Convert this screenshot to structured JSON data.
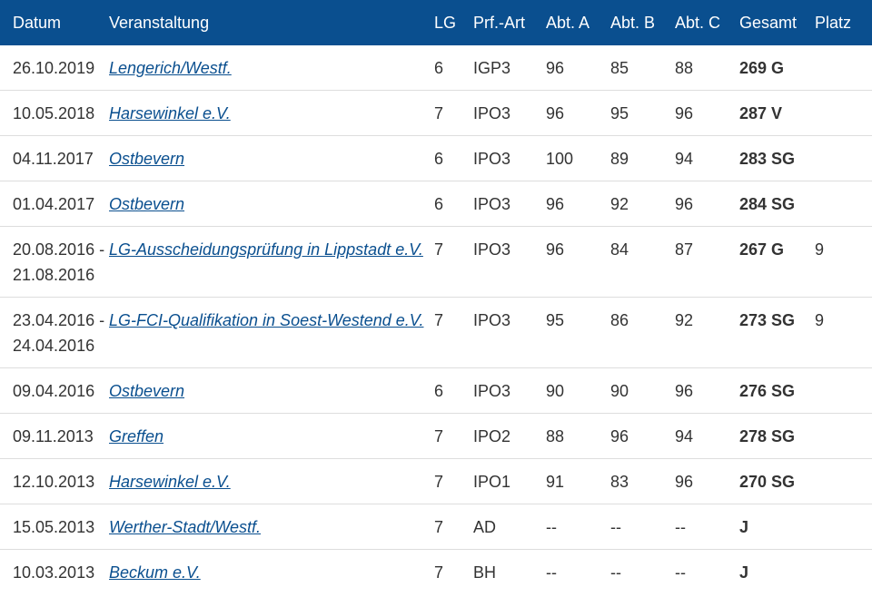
{
  "columns": [
    "Datum",
    "Veranstaltung",
    "LG",
    "Prf.-Art",
    "Abt. A",
    "Abt. B",
    "Abt. C",
    "Gesamt",
    "Platz"
  ],
  "rows": [
    {
      "date_line1": "26.10.2019",
      "date_line2": "",
      "event": "Lengerich/Westf.",
      "lg": "6",
      "type": "IGP3",
      "a": "96",
      "b": "85",
      "c": "88",
      "total": "269 G",
      "place": ""
    },
    {
      "date_line1": "10.05.2018",
      "date_line2": "",
      "event": "Harsewinkel e.V.",
      "lg": "7",
      "type": "IPO3",
      "a": "96",
      "b": "95",
      "c": "96",
      "total": "287 V",
      "place": ""
    },
    {
      "date_line1": "04.11.2017",
      "date_line2": "",
      "event": "Ostbevern",
      "lg": "6",
      "type": "IPO3",
      "a": "100",
      "b": "89",
      "c": "94",
      "total": "283 SG",
      "place": ""
    },
    {
      "date_line1": "01.04.2017",
      "date_line2": "",
      "event": "Ostbevern",
      "lg": "6",
      "type": "IPO3",
      "a": "96",
      "b": "92",
      "c": "96",
      "total": "284 SG",
      "place": ""
    },
    {
      "date_line1": "20.08.2016 -",
      "date_line2": "21.08.2016",
      "event": "LG-Ausscheidungsprüfung in Lippstadt e.V.",
      "lg": "7",
      "type": "IPO3",
      "a": "96",
      "b": "84",
      "c": "87",
      "total": "267 G",
      "place": "9"
    },
    {
      "date_line1": "23.04.2016 -",
      "date_line2": "24.04.2016",
      "event": "LG-FCI-Qualifikation in Soest-Westend e.V.",
      "lg": "7",
      "type": "IPO3",
      "a": "95",
      "b": "86",
      "c": "92",
      "total": "273 SG",
      "place": "9"
    },
    {
      "date_line1": "09.04.2016",
      "date_line2": "",
      "event": "Ostbevern",
      "lg": "6",
      "type": "IPO3",
      "a": "90",
      "b": "90",
      "c": "96",
      "total": "276 SG",
      "place": ""
    },
    {
      "date_line1": "09.11.2013",
      "date_line2": "",
      "event": "Greffen",
      "lg": "7",
      "type": "IPO2",
      "a": "88",
      "b": "96",
      "c": "94",
      "total": "278 SG",
      "place": ""
    },
    {
      "date_line1": "12.10.2013",
      "date_line2": "",
      "event": "Harsewinkel e.V.",
      "lg": "7",
      "type": "IPO1",
      "a": "91",
      "b": "83",
      "c": "96",
      "total": "270 SG",
      "place": ""
    },
    {
      "date_line1": "15.05.2013",
      "date_line2": "",
      "event": "Werther-Stadt/Westf.",
      "lg": "7",
      "type": "AD",
      "a": "--",
      "b": "--",
      "c": "--",
      "total": "J",
      "place": ""
    },
    {
      "date_line1": "10.03.2013",
      "date_line2": "",
      "event": "Beckum e.V.",
      "lg": "7",
      "type": "BH",
      "a": "--",
      "b": "--",
      "c": "--",
      "total": "J",
      "place": ""
    }
  ],
  "colors": {
    "header_bg": "#0a4f8f",
    "link": "#0a4f8f",
    "border": "#dddddd"
  }
}
